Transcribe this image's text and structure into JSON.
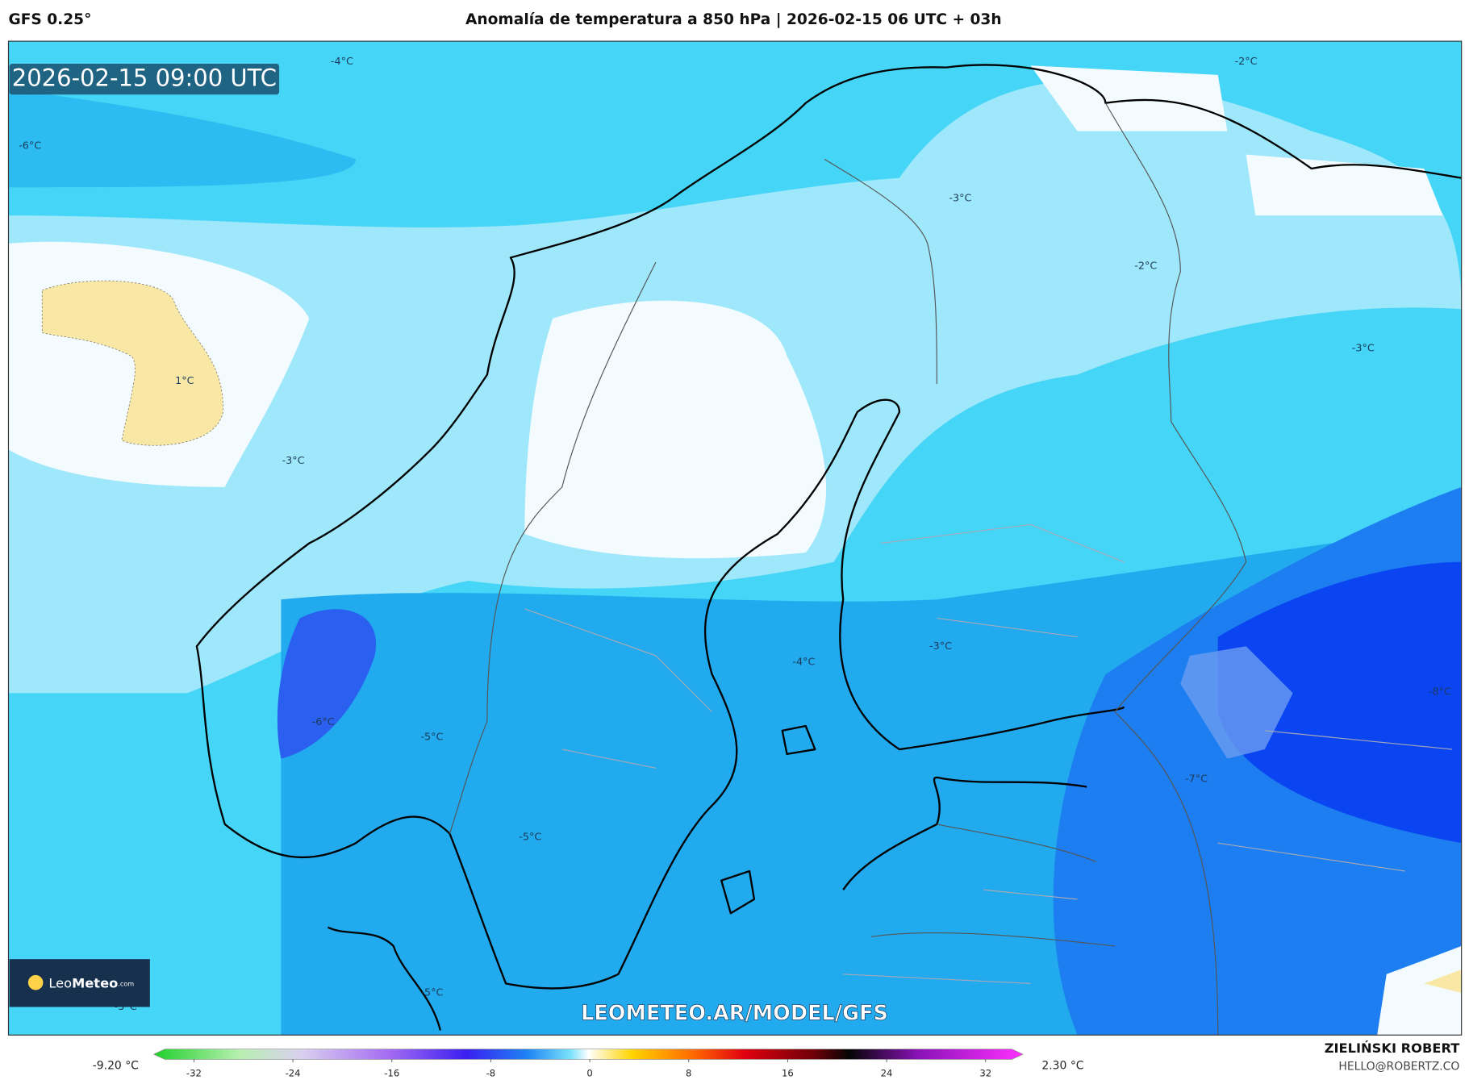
{
  "header": {
    "model": "GFS 0.25°",
    "title": "Anomalía de temperatura a 850 hPa | 2026-02-15 06 UTC + 03h"
  },
  "map": {
    "valid_time": "2026-02-15 09:00 UTC",
    "contour_labels": [
      "-4°C",
      "-2°C",
      "-6°C",
      "-3°C",
      "-2°C",
      "1°C",
      "-3°C",
      "-3°C",
      "-4°C",
      "-3°C",
      "-8°C",
      "-6°C",
      "-5°C",
      "-7°C",
      "-5°C",
      "-5°C",
      "-5°C"
    ],
    "logo": {
      "brand_light": "Leo",
      "brand_bold": "Meteo",
      "domain": ".com"
    },
    "watermark": "LEOMETEO.AR/MODEL/GFS"
  },
  "colorbar": {
    "min_label": "-9.20 °C",
    "max_label": "2.30 °C",
    "ticks": [
      -32,
      -24,
      -16,
      -8,
      0,
      8,
      16,
      24,
      32
    ]
  },
  "footer": {
    "author": "ZIELIŃSKI ROBERT",
    "email": "HELLO@ROBERTZ.CO"
  }
}
